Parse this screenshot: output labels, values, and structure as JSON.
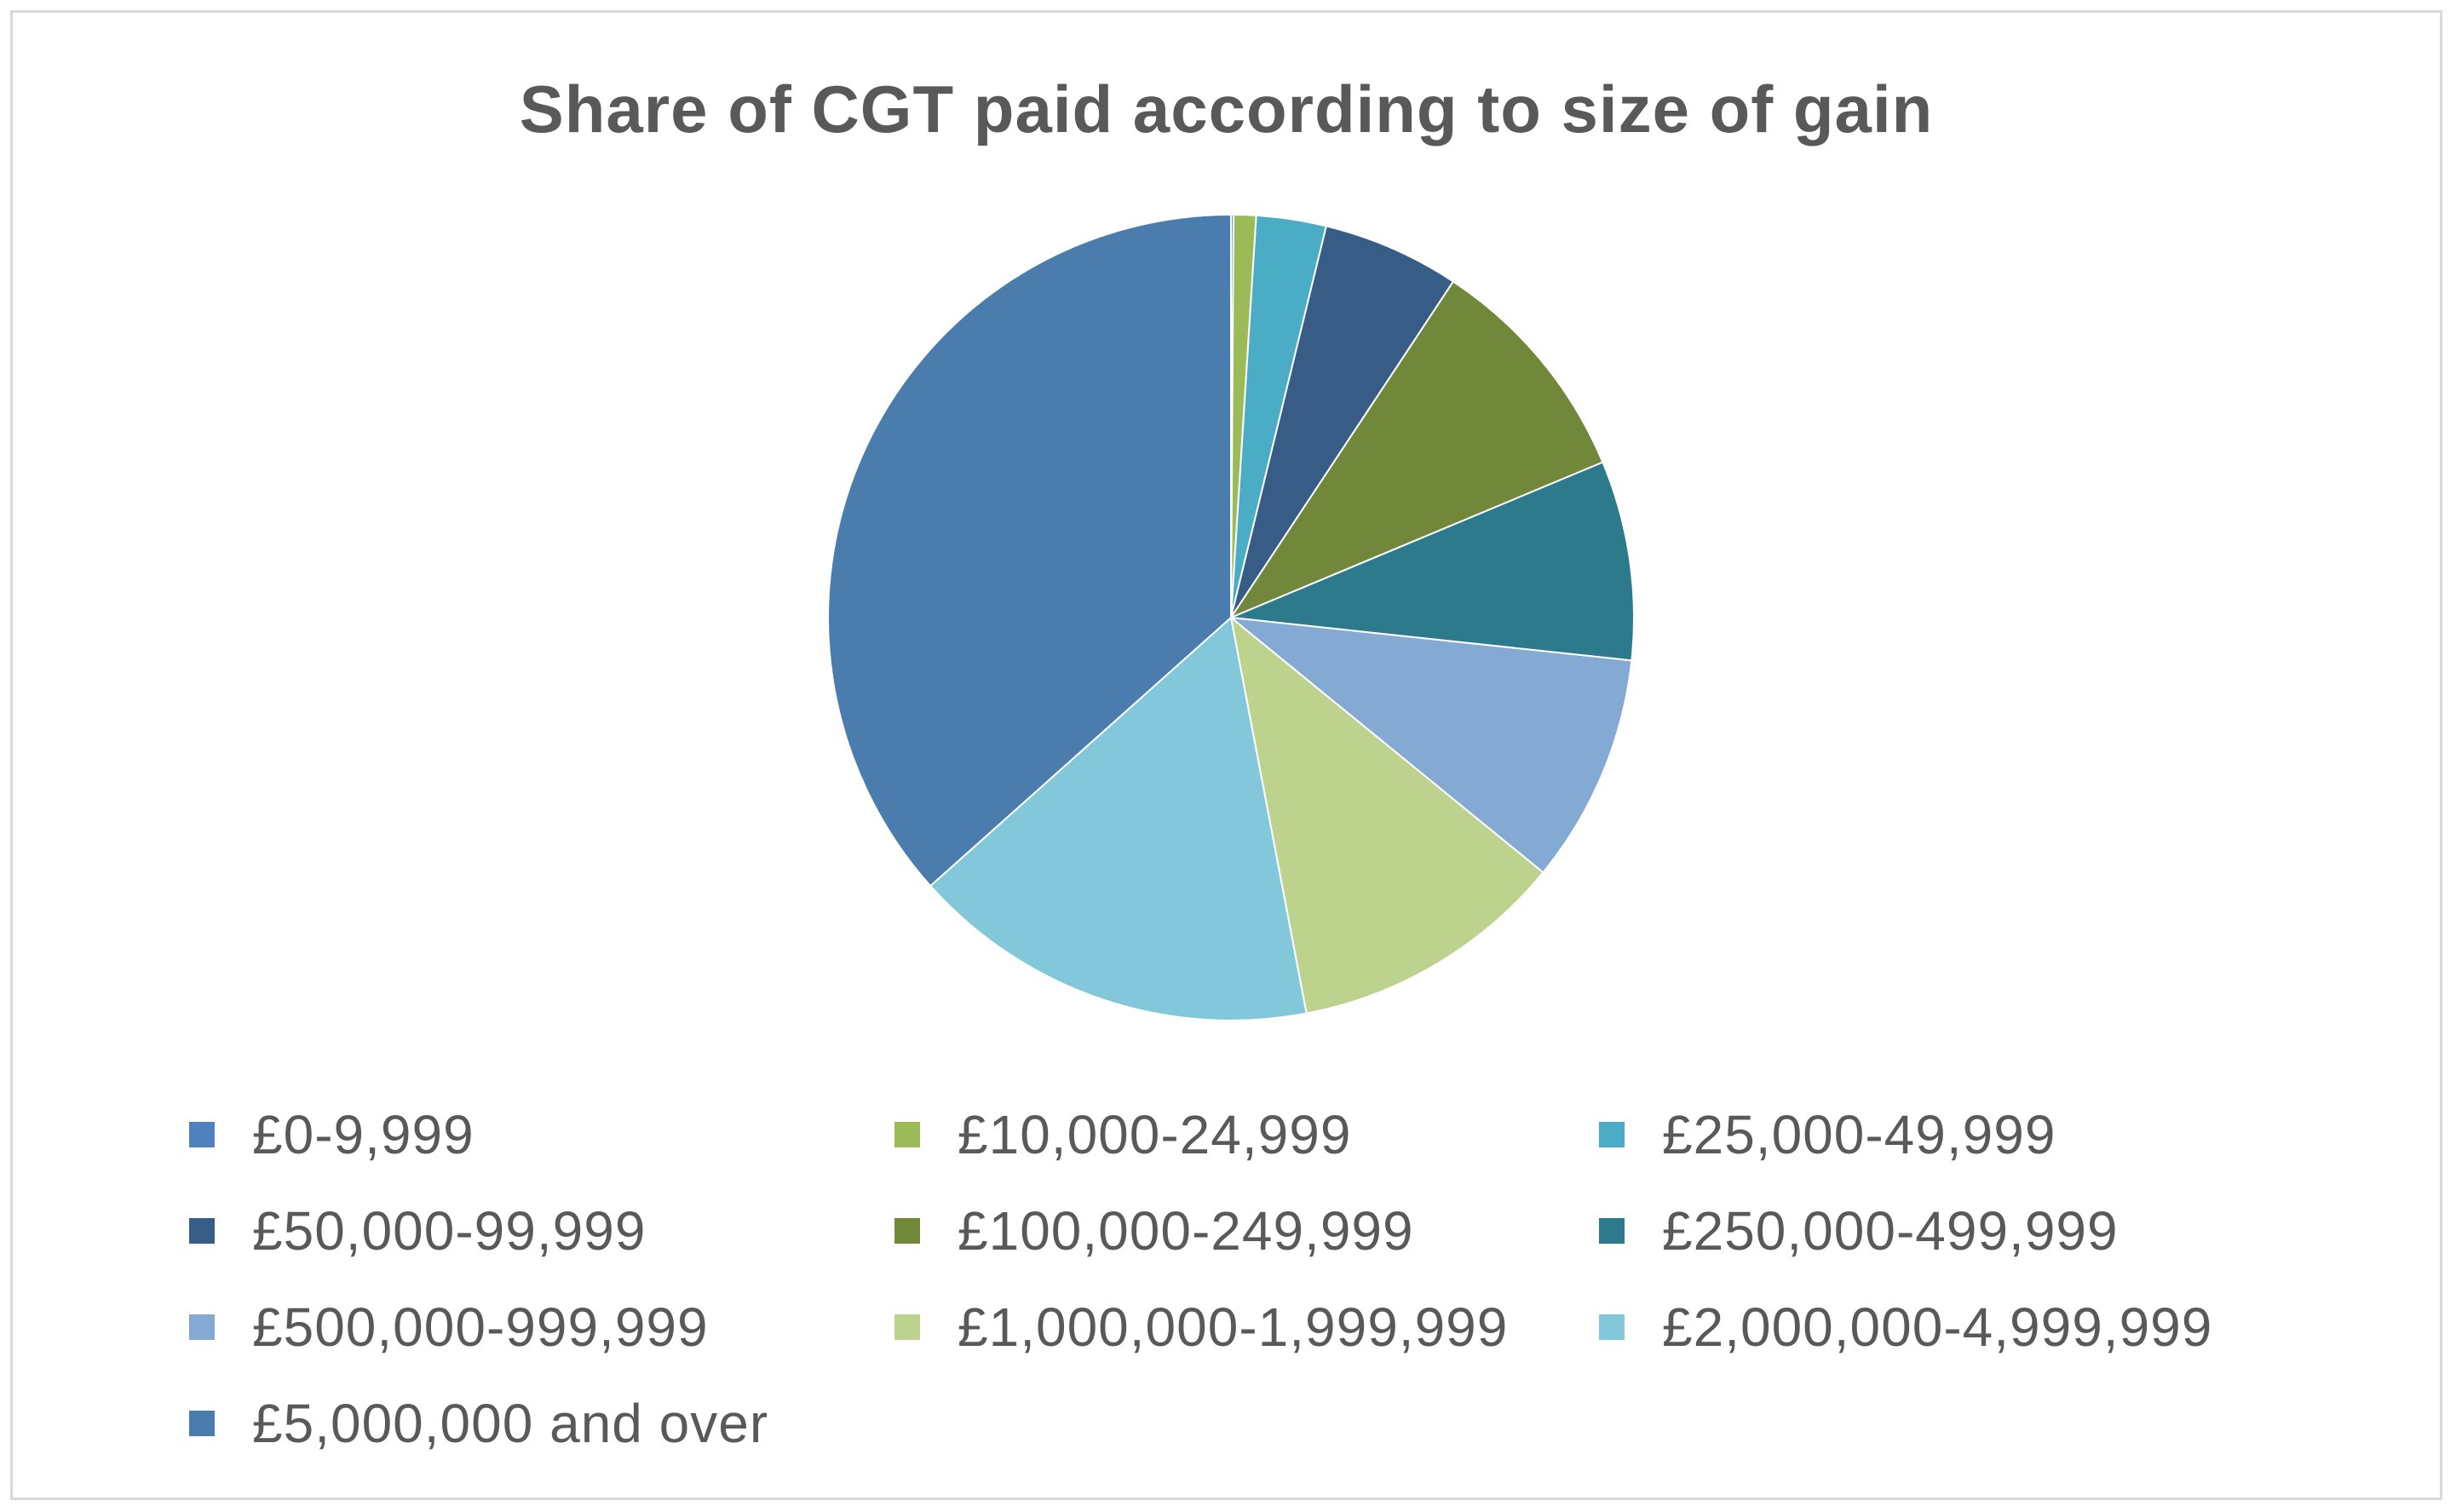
{
  "chart_data": {
    "type": "pie",
    "title": "Share of CGT paid according to size of gain",
    "legend_position": "bottom",
    "categories": [
      "£0-9,999",
      "£10,000-24,999",
      "£25,000-49,999",
      "£50,000-99,999",
      "£100,000-249,999",
      "£250,000-499,999",
      "£500,000-999,999",
      "£1,000,000-1,999,999",
      "£2,000,000-4,999,999",
      "£5,000,000 and over"
    ],
    "values": [
      0.1,
      0.9,
      2.8,
      5.5,
      9.4,
      8.0,
      9.2,
      11.1,
      16.4,
      36.6
    ],
    "colors": [
      "#4f81bd",
      "#9bbb59",
      "#4bacc6",
      "#375c86",
      "#71883a",
      "#2e7a8d",
      "#84a9d3",
      "#bdd28c",
      "#82c8da",
      "#4a7dad"
    ]
  }
}
